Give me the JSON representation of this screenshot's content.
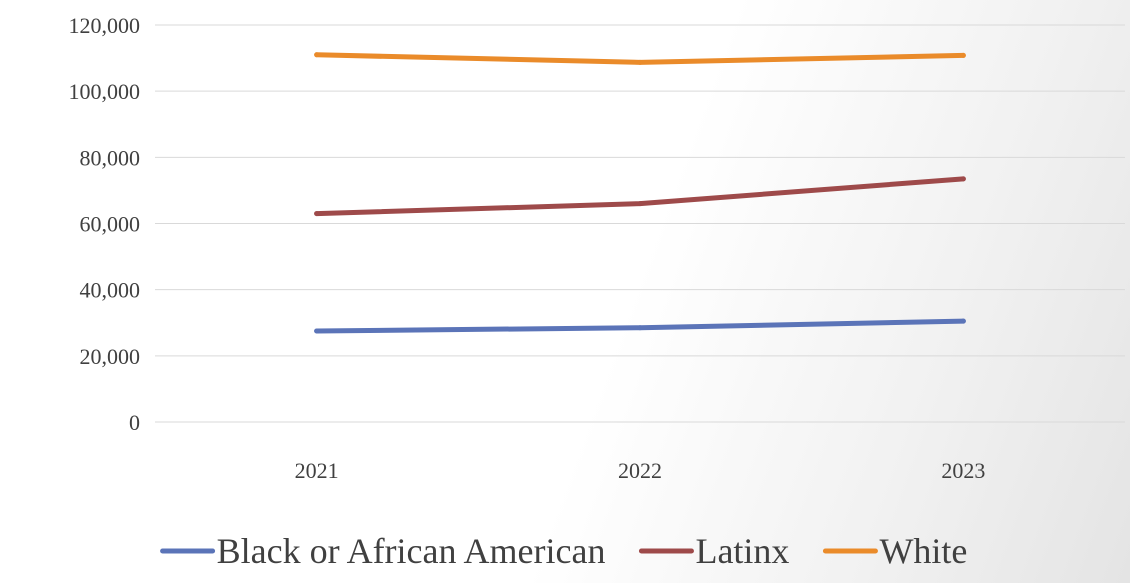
{
  "chart_data": {
    "type": "line",
    "title": "",
    "xlabel": "",
    "ylabel": "",
    "categories": [
      "2021",
      "2022",
      "2023"
    ],
    "ylim": [
      0,
      120000
    ],
    "y_ticks": [
      0,
      20000,
      40000,
      60000,
      80000,
      100000,
      120000
    ],
    "y_tick_labels": [
      "0",
      "20,000",
      "40,000",
      "60,000",
      "80,000",
      "100,000",
      "120,000"
    ],
    "grid": true,
    "legend_position": "bottom",
    "series": [
      {
        "name": "Black or African American",
        "color": "#5b74b8",
        "values": [
          27500,
          28500,
          30500
        ]
      },
      {
        "name": "Latinx",
        "color": "#9e4a4a",
        "values": [
          63000,
          66000,
          73500
        ]
      },
      {
        "name": "White",
        "color": "#ea8b2a",
        "values": [
          111000,
          108700,
          110800
        ]
      }
    ]
  }
}
